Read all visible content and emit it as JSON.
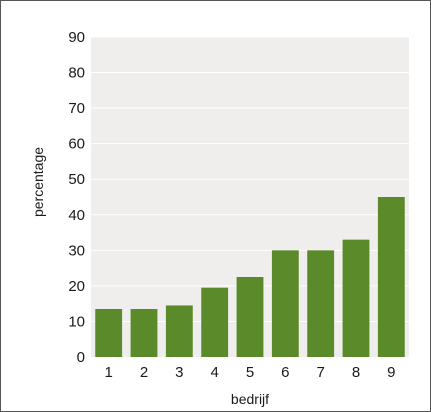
{
  "chart_data": {
    "type": "bar",
    "categories": [
      "1",
      "2",
      "3",
      "4",
      "5",
      "6",
      "7",
      "8",
      "9"
    ],
    "values": [
      13.5,
      13.5,
      14.5,
      19.5,
      22.5,
      30,
      30,
      33,
      45
    ],
    "title": "",
    "xlabel": "bedrijf",
    "ylabel": "percentage",
    "ylim": [
      0,
      90
    ],
    "yticks": [
      "0",
      "10",
      "20",
      "30",
      "40",
      "50",
      "60",
      "70",
      "80",
      "90"
    ],
    "grid": true,
    "legend": "none",
    "colors": {
      "bar": "#5a8a2a",
      "plot_background": "#efeeec",
      "grid": "#ffffff"
    }
  }
}
